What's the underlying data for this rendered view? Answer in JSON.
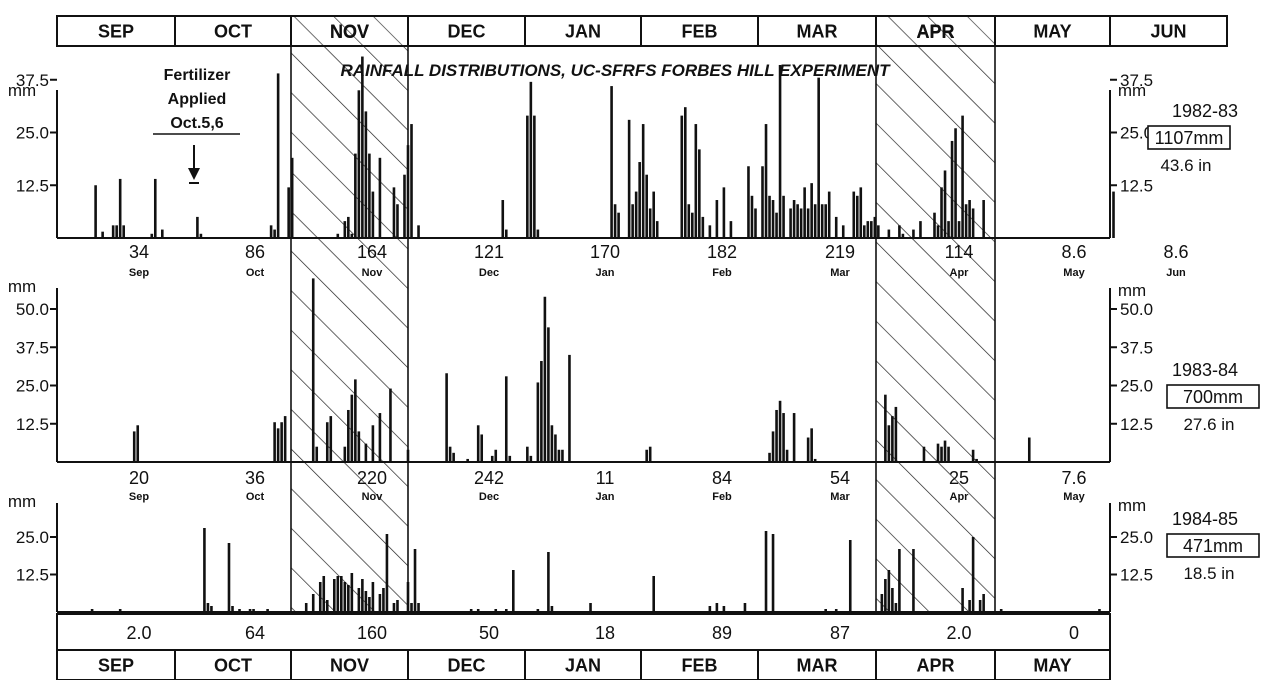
{
  "chart_data": {
    "type": "bar",
    "title": "RAINFALL DISTRIBUTIONS, UC-SFRFS FORBES HILL EXPERIMENT",
    "unit": "mm",
    "top_months": [
      "SEP",
      "OCT",
      "NOV",
      "DEC",
      "JAN",
      "FEB",
      "MAR",
      "APR",
      "MAY",
      "JUN"
    ],
    "bottom_months": [
      "SEP",
      "OCT",
      "NOV",
      "DEC",
      "JAN",
      "FEB",
      "MAR",
      "APR",
      "MAY"
    ],
    "hatched_months": [
      "NOV",
      "APR"
    ],
    "annotation": {
      "line1": "Fertilizer",
      "line2": "Applied",
      "line3": "Oct.5,6"
    },
    "panels": [
      {
        "season": "1982-83",
        "total_mm": "1107mm",
        "total_in": "43.6 in",
        "yticks_left": [
          "12.5",
          "25.0",
          "37.5"
        ],
        "yticks_right": [
          "12.5",
          "25.0",
          "37.5"
        ],
        "ylim": [
          0,
          50
        ],
        "monthly_totals": [
          {
            "value": "34",
            "month": "Sep"
          },
          {
            "value": "86",
            "month": "Oct"
          },
          {
            "value": "164",
            "month": "Nov"
          },
          {
            "value": "121",
            "month": "Dec"
          },
          {
            "value": "170",
            "month": "Jan"
          },
          {
            "value": "182",
            "month": "Feb"
          },
          {
            "value": "219",
            "month": "Mar"
          },
          {
            "value": "114",
            "month": "Apr"
          },
          {
            "value": "8.6",
            "month": "May"
          },
          {
            "value": "8.6",
            "month": "Jun"
          }
        ],
        "bars": [
          [
            11,
            12.5
          ],
          [
            13,
            1.5
          ],
          [
            16,
            3
          ],
          [
            17,
            3
          ],
          [
            18,
            14
          ],
          [
            19,
            3
          ],
          [
            27,
            1
          ],
          [
            28,
            14
          ],
          [
            30,
            2
          ],
          [
            40,
            5
          ],
          [
            41,
            1
          ],
          [
            61,
            3
          ],
          [
            62,
            2
          ],
          [
            63,
            39
          ],
          [
            66,
            12
          ],
          [
            67,
            19
          ],
          [
            80,
            1
          ],
          [
            82,
            4
          ],
          [
            83,
            5
          ],
          [
            84,
            1
          ],
          [
            85,
            20
          ],
          [
            86,
            35
          ],
          [
            87,
            43
          ],
          [
            88,
            30
          ],
          [
            89,
            20
          ],
          [
            90,
            11
          ],
          [
            92,
            19
          ],
          [
            96,
            12
          ],
          [
            97,
            8
          ],
          [
            99,
            15
          ],
          [
            100,
            22
          ],
          [
            101,
            27
          ],
          [
            103,
            3
          ],
          [
            127,
            9
          ],
          [
            128,
            2
          ],
          [
            134,
            29
          ],
          [
            135,
            37
          ],
          [
            136,
            29
          ],
          [
            137,
            2
          ],
          [
            158,
            36
          ],
          [
            159,
            8
          ],
          [
            160,
            6
          ],
          [
            163,
            28
          ],
          [
            164,
            8
          ],
          [
            165,
            11
          ],
          [
            166,
            18
          ],
          [
            167,
            27
          ],
          [
            168,
            15
          ],
          [
            169,
            7
          ],
          [
            170,
            11
          ],
          [
            171,
            4
          ],
          [
            178,
            29
          ],
          [
            179,
            31
          ],
          [
            180,
            8
          ],
          [
            181,
            6
          ],
          [
            182,
            27
          ],
          [
            183,
            21
          ],
          [
            184,
            5
          ],
          [
            186,
            3
          ],
          [
            188,
            9
          ],
          [
            190,
            12
          ],
          [
            192,
            4
          ],
          [
            197,
            17
          ],
          [
            198,
            10
          ],
          [
            199,
            7
          ],
          [
            201,
            17
          ],
          [
            202,
            27
          ],
          [
            203,
            10
          ],
          [
            204,
            9
          ],
          [
            205,
            6
          ],
          [
            206,
            41
          ],
          [
            207,
            10
          ],
          [
            209,
            7
          ],
          [
            210,
            9
          ],
          [
            211,
            8
          ],
          [
            212,
            7
          ],
          [
            213,
            12
          ],
          [
            214,
            7
          ],
          [
            215,
            13
          ],
          [
            216,
            8
          ],
          [
            217,
            38
          ],
          [
            218,
            8
          ],
          [
            219,
            8
          ],
          [
            220,
            11
          ],
          [
            222,
            5
          ],
          [
            224,
            3
          ],
          [
            227,
            11
          ],
          [
            228,
            10
          ],
          [
            229,
            12
          ],
          [
            230,
            3
          ],
          [
            231,
            4
          ],
          [
            232,
            4
          ],
          [
            233,
            5
          ],
          [
            234,
            3
          ],
          [
            237,
            2
          ],
          [
            240,
            3
          ],
          [
            241,
            1
          ],
          [
            244,
            2
          ],
          [
            246,
            4
          ],
          [
            250,
            6
          ],
          [
            251,
            3
          ],
          [
            252,
            12
          ],
          [
            253,
            16
          ],
          [
            254,
            4
          ],
          [
            255,
            23
          ],
          [
            256,
            26
          ],
          [
            257,
            4
          ],
          [
            258,
            29
          ],
          [
            259,
            8
          ],
          [
            260,
            9
          ],
          [
            261,
            7
          ],
          [
            264,
            9
          ],
          [
            301,
            11
          ]
        ]
      },
      {
        "season": "1983-84",
        "total_mm": "700mm",
        "total_in": "27.6 in",
        "yticks_left": [
          "12.5",
          "25.0",
          "37.5",
          "50.0"
        ],
        "yticks_right": [
          "12.5",
          "25.0",
          "37.5",
          "50.0"
        ],
        "ylim": [
          0,
          62
        ],
        "monthly_totals": [
          {
            "value": "20",
            "month": "Sep"
          },
          {
            "value": "36",
            "month": "Oct"
          },
          {
            "value": "220",
            "month": "Nov"
          },
          {
            "value": "242",
            "month": "Dec"
          },
          {
            "value": "11",
            "month": "Jan"
          },
          {
            "value": "84",
            "month": "Feb"
          },
          {
            "value": "54",
            "month": "Mar"
          },
          {
            "value": "25",
            "month": "Apr"
          },
          {
            "value": "7.6",
            "month": "May"
          }
        ],
        "bars": [
          [
            22,
            10
          ],
          [
            23,
            12
          ],
          [
            62,
            13
          ],
          [
            63,
            11
          ],
          [
            64,
            13
          ],
          [
            65,
            15
          ],
          [
            73,
            60
          ],
          [
            74,
            5
          ],
          [
            77,
            13
          ],
          [
            78,
            15
          ],
          [
            82,
            5
          ],
          [
            83,
            17
          ],
          [
            84,
            22
          ],
          [
            85,
            27
          ],
          [
            86,
            10
          ],
          [
            88,
            6
          ],
          [
            90,
            12
          ],
          [
            92,
            16
          ],
          [
            95,
            24
          ],
          [
            100,
            4
          ],
          [
            111,
            29
          ],
          [
            112,
            5
          ],
          [
            113,
            3
          ],
          [
            117,
            1
          ],
          [
            120,
            12
          ],
          [
            121,
            9
          ],
          [
            124,
            2
          ],
          [
            125,
            4
          ],
          [
            128,
            28
          ],
          [
            129,
            2
          ],
          [
            134,
            5
          ],
          [
            135,
            2
          ],
          [
            137,
            26
          ],
          [
            138,
            33
          ],
          [
            139,
            54
          ],
          [
            140,
            44
          ],
          [
            141,
            12
          ],
          [
            142,
            9
          ],
          [
            143,
            4
          ],
          [
            144,
            4
          ],
          [
            146,
            35
          ],
          [
            168,
            4
          ],
          [
            169,
            5
          ],
          [
            203,
            3
          ],
          [
            204,
            10
          ],
          [
            205,
            17
          ],
          [
            206,
            20
          ],
          [
            207,
            16
          ],
          [
            208,
            4
          ],
          [
            210,
            16
          ],
          [
            214,
            8
          ],
          [
            215,
            11
          ],
          [
            216,
            1
          ],
          [
            236,
            22
          ],
          [
            237,
            12
          ],
          [
            238,
            15
          ],
          [
            239,
            18
          ],
          [
            247,
            5
          ],
          [
            251,
            6
          ],
          [
            252,
            5
          ],
          [
            253,
            7
          ],
          [
            254,
            5
          ],
          [
            261,
            4
          ],
          [
            262,
            1
          ],
          [
            277,
            8
          ]
        ]
      },
      {
        "season": "1984-85",
        "total_mm": "471mm",
        "total_in": "18.5 in",
        "yticks_left": [
          "12.5",
          "25.0"
        ],
        "yticks_right": [
          "12.5",
          "25.0"
        ],
        "ylim": [
          0,
          37
        ],
        "monthly_totals": [
          {
            "value": "2.0",
            "month": ""
          },
          {
            "value": "64",
            "month": ""
          },
          {
            "value": "160",
            "month": ""
          },
          {
            "value": "50",
            "month": ""
          },
          {
            "value": "18",
            "month": ""
          },
          {
            "value": "89",
            "month": ""
          },
          {
            "value": "87",
            "month": ""
          },
          {
            "value": "2.0",
            "month": ""
          },
          {
            "value": "0",
            "month": ""
          }
        ],
        "bars": [
          [
            10,
            1
          ],
          [
            18,
            1
          ],
          [
            42,
            28
          ],
          [
            43,
            3
          ],
          [
            44,
            2
          ],
          [
            49,
            23
          ],
          [
            50,
            2
          ],
          [
            52,
            1
          ],
          [
            55,
            1
          ],
          [
            56,
            1
          ],
          [
            60,
            1
          ],
          [
            71,
            3
          ],
          [
            73,
            6
          ],
          [
            75,
            10
          ],
          [
            76,
            12
          ],
          [
            77,
            4
          ],
          [
            79,
            11
          ],
          [
            80,
            12
          ],
          [
            81,
            12
          ],
          [
            82,
            10
          ],
          [
            83,
            9
          ],
          [
            84,
            13
          ],
          [
            86,
            8
          ],
          [
            87,
            11
          ],
          [
            88,
            7
          ],
          [
            89,
            5
          ],
          [
            90,
            10
          ],
          [
            92,
            6
          ],
          [
            93,
            8
          ],
          [
            94,
            26
          ],
          [
            96,
            3
          ],
          [
            97,
            4
          ],
          [
            100,
            10
          ],
          [
            101,
            3
          ],
          [
            102,
            21
          ],
          [
            103,
            3
          ],
          [
            118,
            1
          ],
          [
            120,
            1
          ],
          [
            125,
            1
          ],
          [
            128,
            1
          ],
          [
            130,
            14
          ],
          [
            137,
            1
          ],
          [
            140,
            20
          ],
          [
            141,
            2
          ],
          [
            152,
            3
          ],
          [
            170,
            12
          ],
          [
            186,
            2
          ],
          [
            188,
            3
          ],
          [
            190,
            2
          ],
          [
            196,
            3
          ],
          [
            202,
            27
          ],
          [
            204,
            26
          ],
          [
            219,
            1
          ],
          [
            222,
            1
          ],
          [
            226,
            24
          ],
          [
            235,
            6
          ],
          [
            236,
            11
          ],
          [
            237,
            14
          ],
          [
            238,
            8
          ],
          [
            239,
            3
          ],
          [
            240,
            21
          ],
          [
            244,
            21
          ],
          [
            258,
            8
          ],
          [
            260,
            4
          ],
          [
            261,
            25
          ],
          [
            263,
            4
          ],
          [
            264,
            6
          ],
          [
            269,
            1
          ],
          [
            297,
            1
          ]
        ]
      }
    ]
  }
}
